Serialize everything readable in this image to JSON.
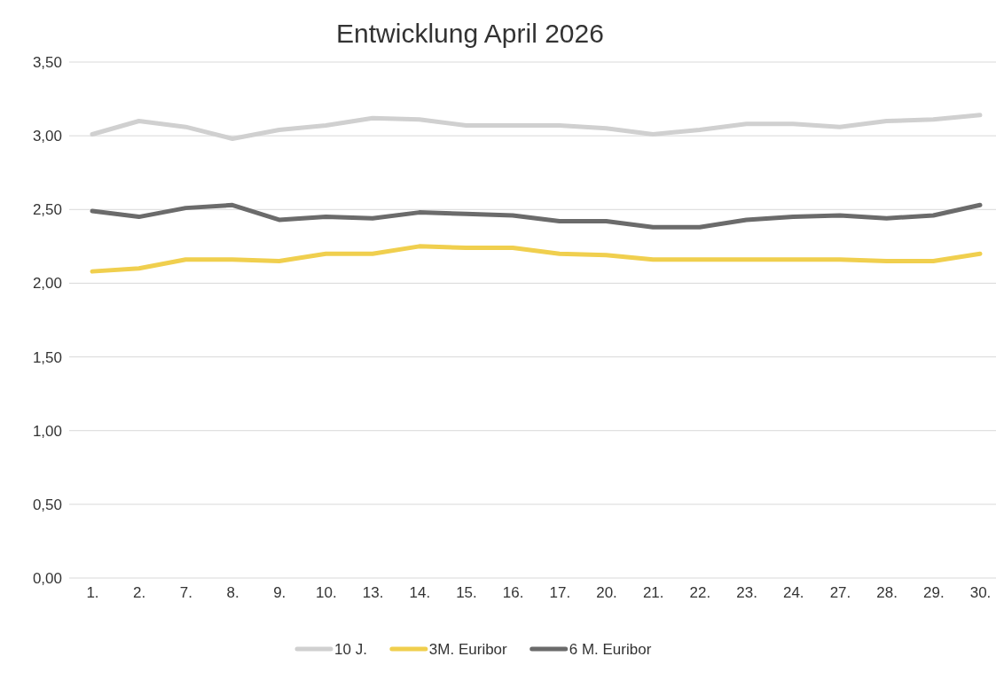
{
  "chart_data": {
    "type": "line",
    "title": "Entwicklung April 2026",
    "categories": [
      "1.",
      "2.",
      "7.",
      "8.",
      "9.",
      "10.",
      "13.",
      "14.",
      "15.",
      "16.",
      "17.",
      "20.",
      "21.",
      "22.",
      "23.",
      "24.",
      "27.",
      "28.",
      "29.",
      "30."
    ],
    "series": [
      {
        "name": "10 J.",
        "color": "#d0d0d0",
        "values": [
          3.01,
          3.1,
          3.06,
          2.98,
          3.04,
          3.07,
          3.12,
          3.11,
          3.07,
          3.07,
          3.07,
          3.05,
          3.01,
          3.04,
          3.08,
          3.08,
          3.06,
          3.1,
          3.11,
          3.14
        ]
      },
      {
        "name": "3M. Euribor",
        "color": "#f0cf4e",
        "values": [
          2.08,
          2.1,
          2.16,
          2.16,
          2.15,
          2.2,
          2.2,
          2.25,
          2.24,
          2.24,
          2.2,
          2.19,
          2.16,
          2.16,
          2.16,
          2.16,
          2.16,
          2.15,
          2.15,
          2.2
        ]
      },
      {
        "name": "6 M. Euribor",
        "color": "#6b6b6b",
        "values": [
          2.49,
          2.45,
          2.51,
          2.53,
          2.43,
          2.45,
          2.44,
          2.48,
          2.47,
          2.46,
          2.42,
          2.42,
          2.38,
          2.38,
          2.43,
          2.45,
          2.46,
          2.44,
          2.46,
          2.53
        ]
      }
    ],
    "ylim": [
      0,
      3.5
    ],
    "yticks": [
      {
        "value": 0,
        "label": "0,00"
      },
      {
        "value": 0.5,
        "label": "0,50"
      },
      {
        "value": 1,
        "label": "1,00"
      },
      {
        "value": 1.5,
        "label": "1,50"
      },
      {
        "value": 2,
        "label": "2,00"
      },
      {
        "value": 2.5,
        "label": "2,50"
      },
      {
        "value": 3,
        "label": "3,00"
      },
      {
        "value": 3.5,
        "label": "3,50"
      }
    ],
    "grid": "y",
    "legend": "bottom",
    "marker": "none",
    "line_style": "solid"
  }
}
